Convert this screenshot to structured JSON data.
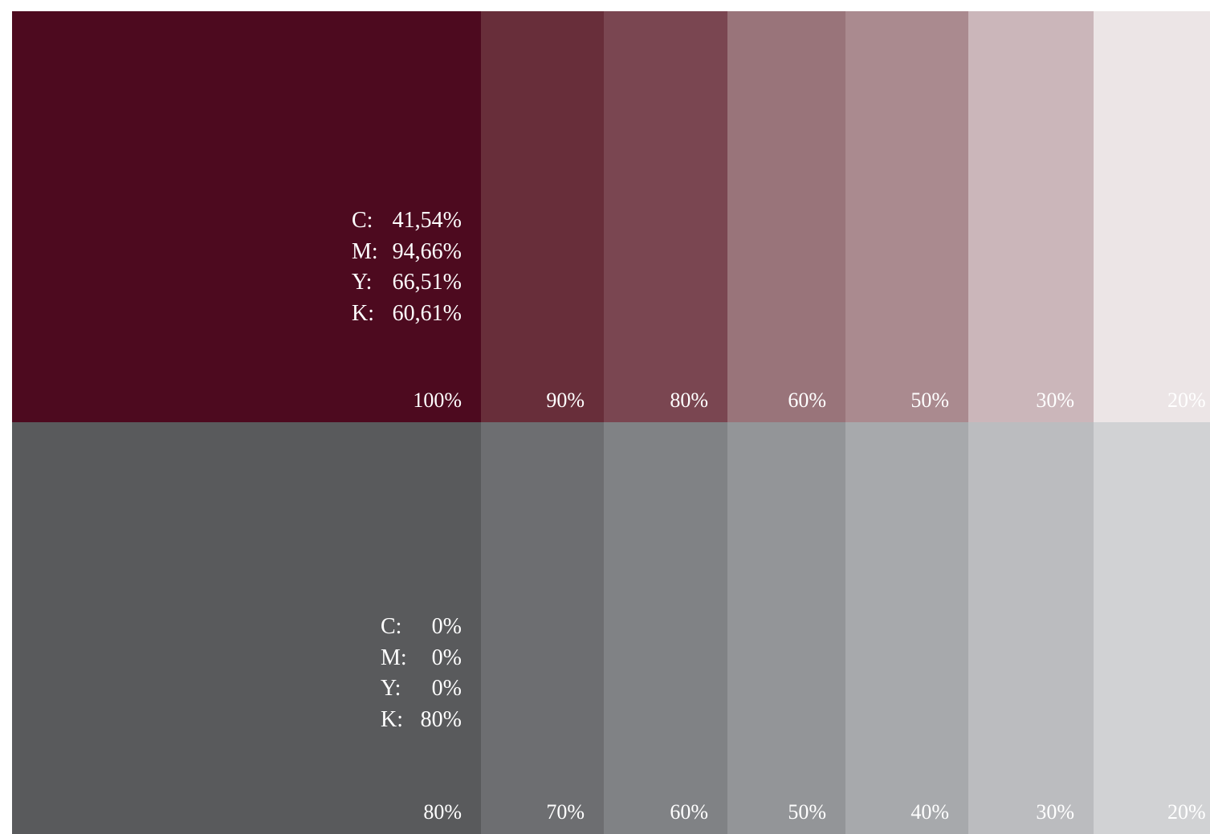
{
  "primary": {
    "base_color": "#4d0a1f",
    "cmyk": [
      {
        "label": "C:",
        "value": "41,54%"
      },
      {
        "label": "M:",
        "value": "94,66%"
      },
      {
        "label": "Y:",
        "value": "66,51%"
      },
      {
        "label": "K:",
        "value": "60,61%"
      }
    ],
    "tints": [
      {
        "label": "100%",
        "color": "#4d0a1f"
      },
      {
        "label": "90%",
        "color": "#682e3a"
      },
      {
        "label": "80%",
        "color": "#7a4651"
      },
      {
        "label": "60%",
        "color": "#99747a"
      },
      {
        "label": "50%",
        "color": "#aa8a8f"
      },
      {
        "label": "30%",
        "color": "#cbb6ba"
      },
      {
        "label": "20%",
        "color": "#ece5e6"
      }
    ]
  },
  "secondary": {
    "base_color": "#595a5c",
    "cmyk": [
      {
        "label": "C:",
        "value": "0%"
      },
      {
        "label": "M:",
        "value": "0%"
      },
      {
        "label": "Y:",
        "value": "0%"
      },
      {
        "label": "K:",
        "value": "80%"
      }
    ],
    "tints": [
      {
        "label": "80%",
        "color": "#595a5c"
      },
      {
        "label": "70%",
        "color": "#6d6e71"
      },
      {
        "label": "60%",
        "color": "#808285"
      },
      {
        "label": "50%",
        "color": "#939598"
      },
      {
        "label": "40%",
        "color": "#a7a9ac"
      },
      {
        "label": "30%",
        "color": "#bbbcbf"
      },
      {
        "label": "20%",
        "color": "#d1d2d4"
      }
    ]
  }
}
